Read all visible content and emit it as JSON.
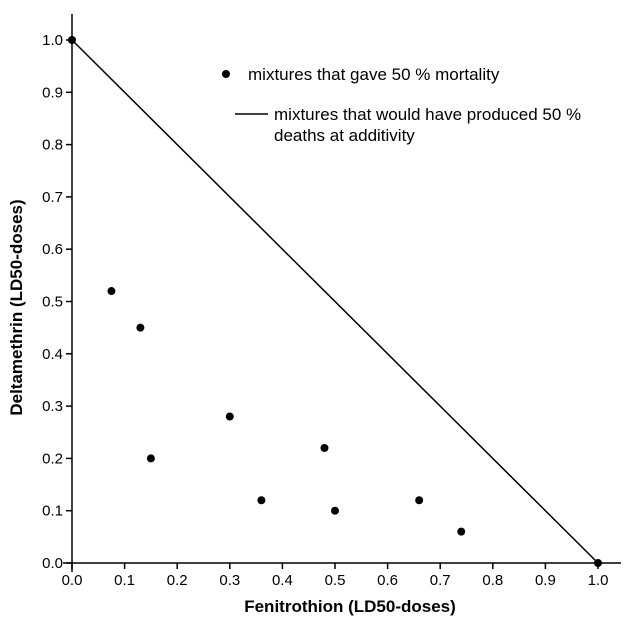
{
  "chart_data": {
    "type": "scatter",
    "xlabel": "Fenitrothion (LD50-doses)",
    "ylabel": "Deltamethrin (LD50-doses)",
    "xlim": [
      0.0,
      1.0
    ],
    "ylim": [
      0.0,
      1.0
    ],
    "x_ticks": [
      "0.0",
      "0.1",
      "0.2",
      "0.3",
      "0.4",
      "0.5",
      "0.6",
      "0.7",
      "0.8",
      "0.9",
      "1.0"
    ],
    "y_ticks": [
      "0.0",
      "0.1",
      "0.2",
      "0.3",
      "0.4",
      "0.5",
      "0.6",
      "0.7",
      "0.8",
      "0.9",
      "1.0"
    ],
    "grid": false,
    "legend_position": "top-right",
    "series": [
      {
        "name": "mixtures that gave 50 % mortality",
        "kind": "scatter",
        "color": "#000000",
        "points": [
          {
            "x": 0.0,
            "y": 1.0
          },
          {
            "x": 0.075,
            "y": 0.52
          },
          {
            "x": 0.13,
            "y": 0.45
          },
          {
            "x": 0.15,
            "y": 0.2
          },
          {
            "x": 0.3,
            "y": 0.28
          },
          {
            "x": 0.36,
            "y": 0.12
          },
          {
            "x": 0.48,
            "y": 0.22
          },
          {
            "x": 0.5,
            "y": 0.1
          },
          {
            "x": 0.66,
            "y": 0.12
          },
          {
            "x": 0.74,
            "y": 0.06
          },
          {
            "x": 1.0,
            "y": 0.0
          }
        ]
      },
      {
        "name": "mixtures that would have produced 50 % deaths at additivity",
        "kind": "line",
        "color": "#000000",
        "points": [
          {
            "x": 0.0,
            "y": 1.0
          },
          {
            "x": 1.0,
            "y": 0.0
          }
        ]
      }
    ],
    "legend": [
      {
        "marker": "dot",
        "lines": [
          "mixtures that gave 50 % mortality"
        ]
      },
      {
        "marker": "line",
        "lines": [
          "mixtures that would have produced 50 %",
          "deaths at additivity"
        ]
      }
    ]
  }
}
